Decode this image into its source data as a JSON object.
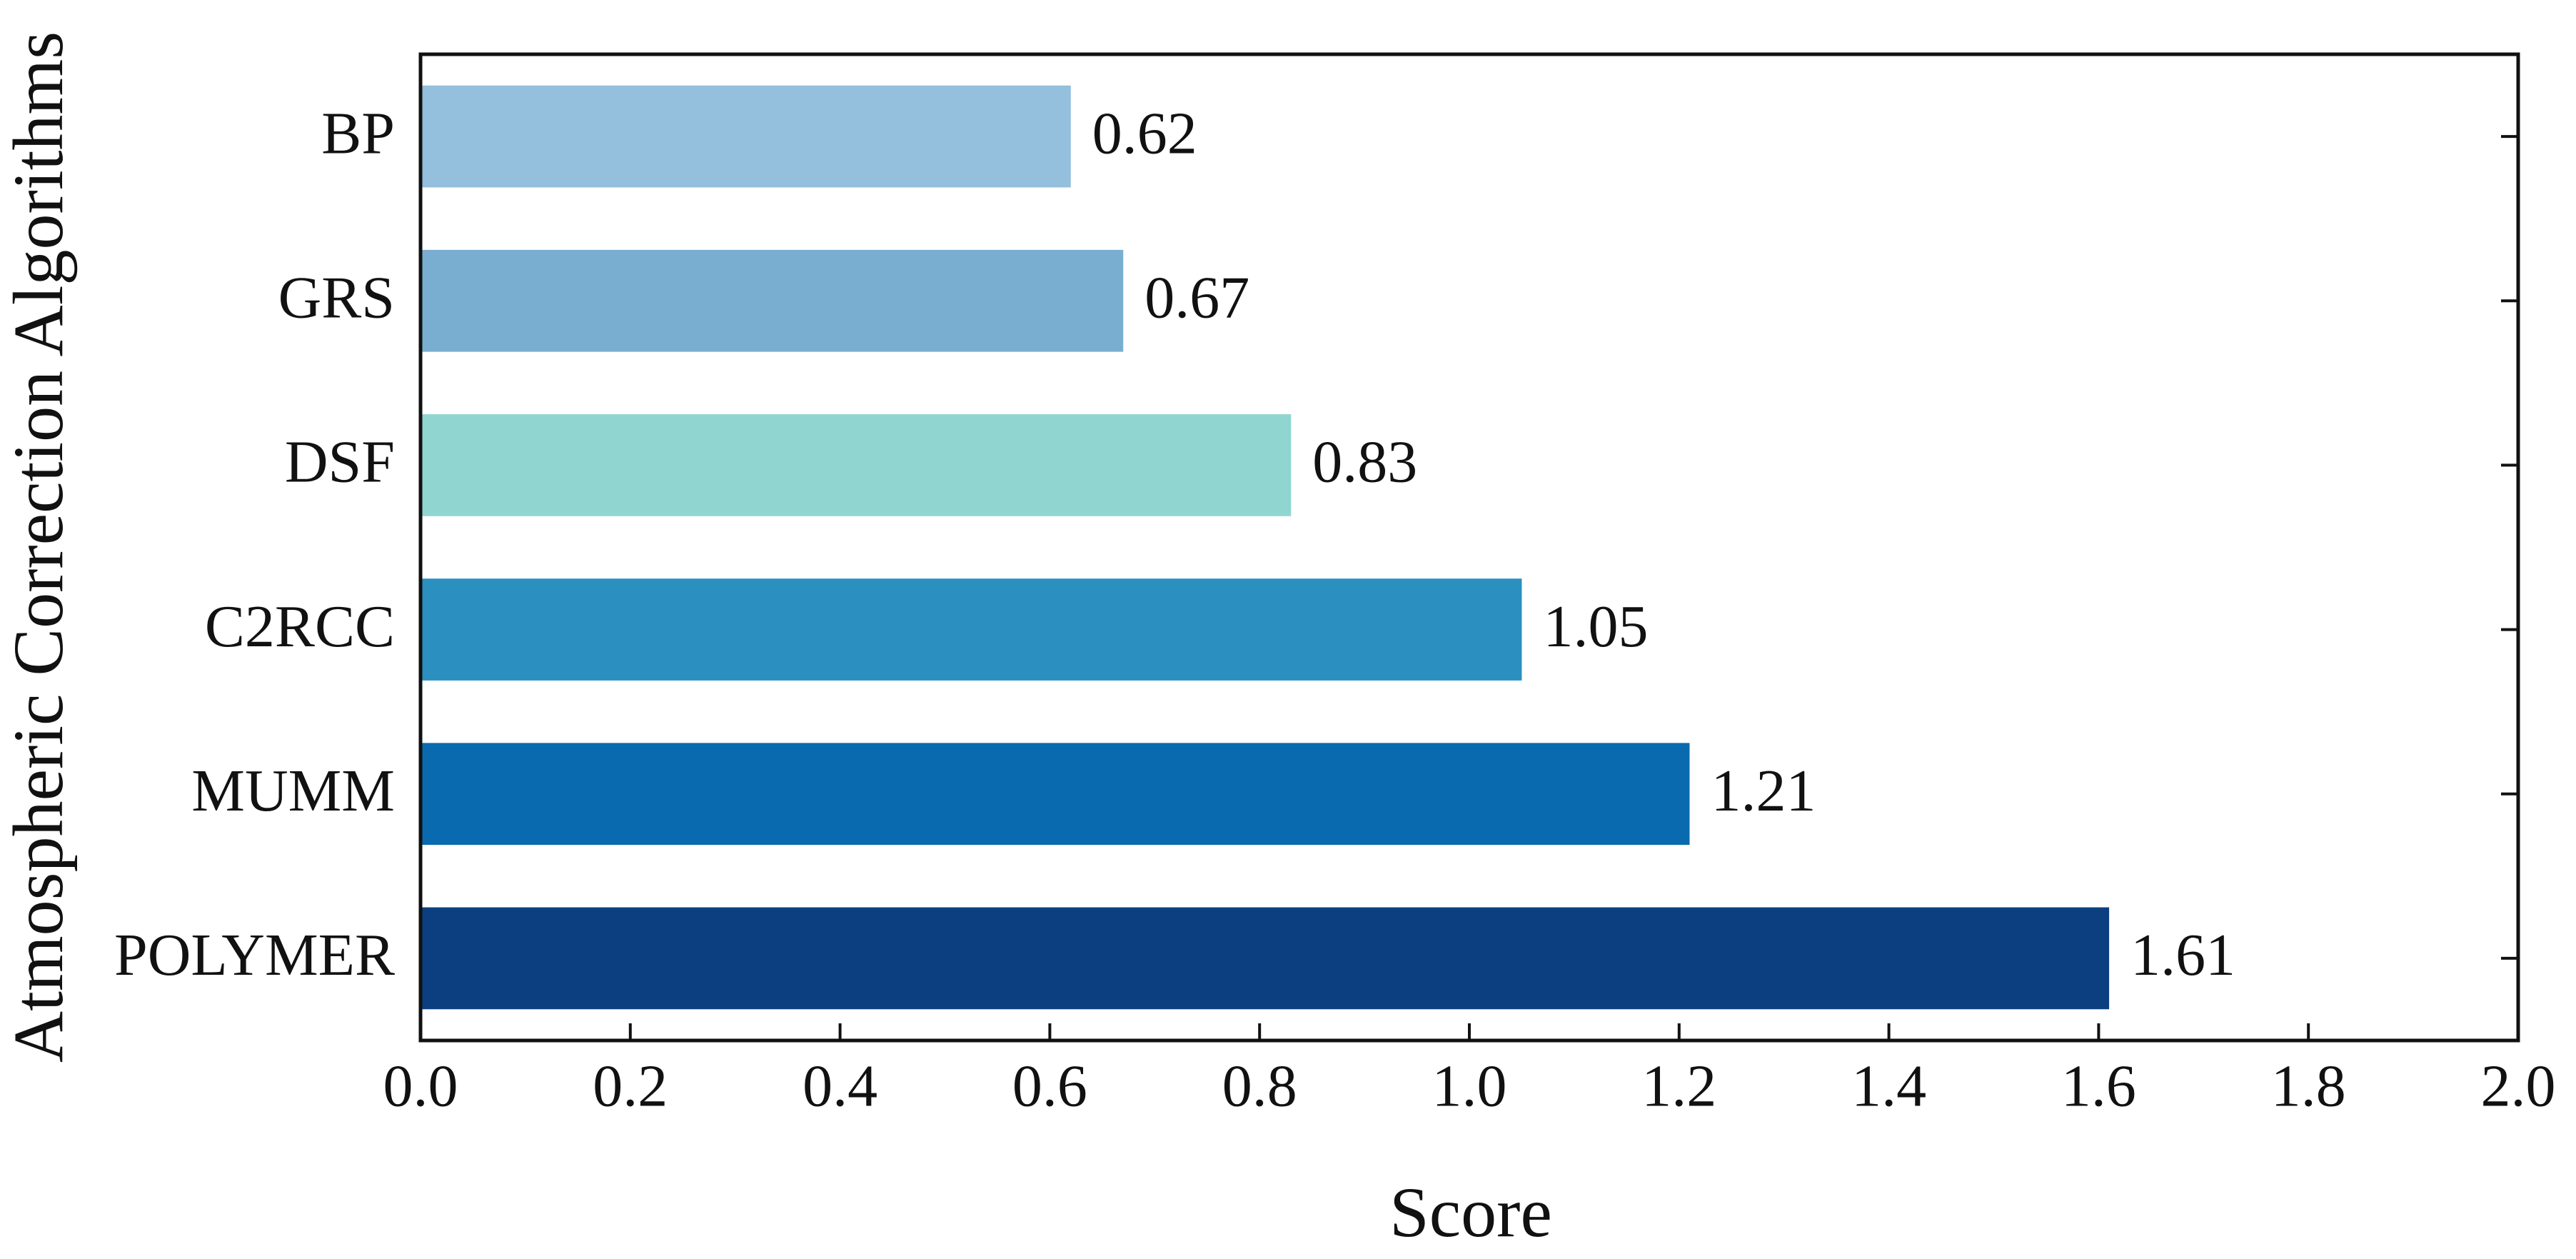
{
  "chart_data": {
    "type": "barh",
    "xlabel": "Score",
    "ylabel": "Atmospheric Correction Algorithms",
    "categories": [
      "BP",
      "GRS",
      "DSF",
      "C2RCC",
      "MUMM",
      "POLYMER"
    ],
    "values": [
      0.62,
      0.67,
      0.83,
      1.05,
      1.21,
      1.61
    ],
    "colors": [
      "#94bfdd",
      "#79aed1",
      "#91d5d0",
      "#2b8fc0",
      "#0a6aaf",
      "#0c3f80"
    ],
    "xlim": [
      0,
      2
    ],
    "xticks": [
      {
        "value": 0,
        "label": "0.0"
      },
      0.2,
      0.4,
      0.6,
      0.8,
      {
        "value": 1,
        "label": "1.0"
      },
      1.2,
      1.4,
      1.6,
      1.8,
      {
        "value": 2,
        "label": "2.0"
      }
    ]
  }
}
